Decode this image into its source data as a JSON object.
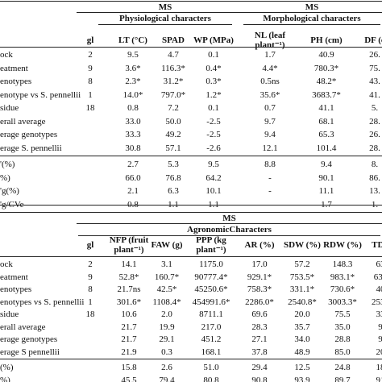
{
  "tables": [
    {
      "ms": [
        "MS",
        "MS"
      ],
      "groups": [
        "Physiological characters",
        "Morphological characters"
      ],
      "columns": [
        "gl",
        "LT (°C)",
        "SPAD",
        "WP (MPa)",
        "NL (leaf plant⁻¹)",
        "PH (cm)",
        "DF (c"
      ],
      "rows": [
        {
          "label": "ock",
          "gl": "2",
          "values": [
            "9.5",
            "4.7",
            "0.1",
            "1.7",
            "40.9",
            "26."
          ]
        },
        {
          "label": "eatment",
          "gl": "9",
          "values": [
            "3.6*",
            "116.3*",
            "0.4*",
            "4.4*",
            "780.3*",
            "75."
          ]
        },
        {
          "label": "enotypes",
          "gl": "8",
          "values": [
            "2.3*",
            "31.2*",
            "0.3*",
            "0.5ns",
            "48.2*",
            "43."
          ]
        },
        {
          "label": "enotype vs S. pennellii",
          "gl": "1",
          "values": [
            "14.0*",
            "797.0*",
            "1.2*",
            "35.6*",
            "3683.7*",
            "41."
          ]
        },
        {
          "label": "sidue",
          "gl": "18",
          "values": [
            "0.8",
            "7.2",
            "0.1",
            "0.7",
            "41.1",
            "5."
          ]
        },
        {
          "label": "erall average",
          "values": [
            "33.0",
            "50.0",
            "-2.5",
            "9.7",
            "68.1",
            "28."
          ]
        },
        {
          "label": "erage genotypes",
          "values": [
            "33.3",
            "49.2",
            "-2.5",
            "9.4",
            "65.3",
            "26."
          ]
        },
        {
          "label": "erage S. pennellii",
          "values": [
            "30.8",
            "57.1",
            "-2.6",
            "12.1",
            "101.4",
            "28."
          ]
        },
        {
          "label": "'(%)",
          "values": [
            "2.7",
            "5.3",
            "9.5",
            "8.8",
            "9.4",
            "8."
          ]
        },
        {
          "label": "%)",
          "values": [
            "66.0",
            "76.8",
            "64.2",
            "-",
            "90.1",
            "86."
          ]
        },
        {
          "label": "'g(%)",
          "values": [
            "2.1",
            "6.3",
            "10.1",
            "-",
            "11.1",
            "13."
          ]
        },
        {
          "label": "'g/CVe",
          "values": [
            "0.8",
            "1.1",
            "1.1",
            "-",
            "1.7",
            "1."
          ]
        }
      ]
    },
    {
      "ms": [
        "MS"
      ],
      "groups": [
        "AgronomicCharacters"
      ],
      "columns": [
        "gl",
        "NFP (fruit plant⁻¹)",
        "FAW (g)",
        "PPP (kg plant⁻¹)",
        "AR (%)",
        "SDW (%)",
        "RDW (%)",
        "TD ("
      ],
      "rows": [
        {
          "label": "ock",
          "gl": "2",
          "values": [
            "14.1",
            "3.1",
            "1175.0",
            "17.0",
            "57.2",
            "148.3",
            "63"
          ]
        },
        {
          "label": "eatment",
          "gl": "9",
          "values": [
            "52.8*",
            "160.7*",
            "90777.4*",
            "929.1*",
            "753.5*",
            "983.1*",
            "637"
          ]
        },
        {
          "label": "enotypes",
          "gl": "8",
          "values": [
            "21.7ns",
            "42.5*",
            "45250.6*",
            "758.3*",
            "331.1*",
            "730.6*",
            "40"
          ]
        },
        {
          "label": "enotypes vs S. pennellii",
          "gl": "1",
          "values": [
            "301.6*",
            "1108.4*",
            "454991.6*",
            "2286.0*",
            "2540.8*",
            "3003.3*",
            "2533"
          ]
        },
        {
          "label": "sidue",
          "gl": "18",
          "values": [
            "10.6",
            "2.0",
            "8711.1",
            "69.6",
            "20.0",
            "75.5",
            "33"
          ]
        },
        {
          "label": "erall average",
          "values": [
            "21.7",
            "19.9",
            "217.0",
            "28.3",
            "35.7",
            "35.0",
            "9"
          ]
        },
        {
          "label": "erage genotypes",
          "values": [
            "21.7",
            "29.1",
            "451.2",
            "27.1",
            "34.0",
            "28.8",
            "9"
          ]
        },
        {
          "label": "erage S pennellii",
          "values": [
            "21.9",
            "0.3",
            "168.1",
            "37.8",
            "48.9",
            "85.0",
            "20"
          ]
        },
        {
          "label": "(%)",
          "values": [
            "15.8",
            "2.6",
            "51.0",
            "29.4",
            "12.5",
            "24.8",
            "18"
          ]
        },
        {
          "label": "%)",
          "values": [
            "45.5",
            "79.4",
            "80.8",
            "90.8",
            "93.9",
            "89.7",
            "91"
          ]
        }
      ]
    }
  ]
}
